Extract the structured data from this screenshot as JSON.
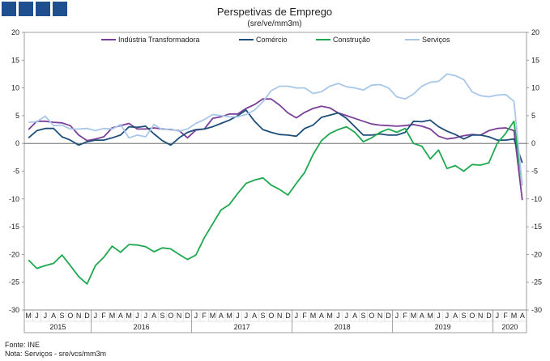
{
  "chart_data": {
    "type": "line",
    "title": "Perspetivas de Emprego",
    "subtitle": "(sre/ve/mm3m)",
    "ylim": [
      -30,
      20
    ],
    "yticks": [
      20,
      15,
      10,
      5,
      0,
      -5,
      -10,
      -15,
      -20,
      -25,
      -30
    ],
    "months": [
      "M",
      "J",
      "J",
      "A",
      "S",
      "O",
      "N",
      "D",
      "J",
      "F",
      "M",
      "A",
      "M",
      "J",
      "J",
      "A",
      "S",
      "O",
      "N",
      "D",
      "J",
      "F",
      "M",
      "A",
      "M",
      "J",
      "J",
      "A",
      "S",
      "O",
      "N",
      "D",
      "J",
      "F",
      "M",
      "A",
      "M",
      "J",
      "J",
      "A",
      "S",
      "O",
      "N",
      "D",
      "J",
      "F",
      "M",
      "A",
      "M",
      "J",
      "J",
      "A",
      "S",
      "O",
      "N",
      "D",
      "J",
      "F",
      "M",
      "A"
    ],
    "years": [
      {
        "label": "2015",
        "start": 0,
        "end": 7
      },
      {
        "label": "2016",
        "start": 8,
        "end": 19
      },
      {
        "label": "2017",
        "start": 20,
        "end": 31
      },
      {
        "label": "2018",
        "start": 32,
        "end": 43
      },
      {
        "label": "2019",
        "start": 44,
        "end": 55
      },
      {
        "label": "2020",
        "start": 56,
        "end": 59
      }
    ],
    "series": [
      {
        "name": "Indústria Transformadora",
        "color": "#7b3f98",
        "values": [
          2.5,
          4.0,
          4.0,
          3.8,
          3.7,
          3.2,
          1.5,
          0.5,
          0.8,
          1.2,
          2.8,
          3.2,
          3.6,
          2.6,
          2.6,
          2.8,
          2.6,
          2.5,
          2.3,
          1.0,
          2.4,
          2.6,
          4.5,
          4.8,
          5.3,
          5.3,
          6.3,
          7.0,
          8.0,
          8.0,
          6.9,
          5.5,
          4.6,
          5.6,
          6.3,
          6.7,
          6.4,
          5.5,
          5.0,
          4.5,
          4.0,
          3.5,
          3.3,
          3.2,
          3.1,
          3.2,
          3.4,
          3.1,
          2.6,
          1.3,
          0.8,
          1.0,
          1.4,
          1.6,
          1.5,
          2.3,
          2.7,
          2.8,
          2.3,
          -10.2
        ]
      },
      {
        "name": "Comércio",
        "color": "#1f4e79",
        "values": [
          1.0,
          2.3,
          2.7,
          2.7,
          1.2,
          0.6,
          -0.3,
          0.3,
          0.6,
          0.6,
          1.0,
          1.5,
          3.0,
          2.9,
          3.1,
          1.7,
          0.5,
          -0.3,
          1.0,
          2.0,
          2.5,
          2.6,
          3.0,
          3.6,
          4.2,
          5.0,
          6.0,
          4.0,
          2.5,
          2.0,
          1.6,
          1.5,
          1.3,
          2.7,
          3.3,
          4.7,
          5.1,
          5.5,
          4.5,
          3.0,
          1.5,
          1.5,
          1.7,
          1.5,
          1.5,
          2.0,
          4.0,
          3.9,
          4.2,
          3.0,
          2.2,
          1.6,
          0.8,
          1.5,
          1.5,
          1.2,
          0.6,
          0.6,
          0.8,
          -3.5
        ]
      },
      {
        "name": "Construção",
        "color": "#1fa84f",
        "values": [
          -21.0,
          -22.5,
          -22.0,
          -21.6,
          -20.1,
          -22.0,
          -24.0,
          -25.3,
          -22.0,
          -20.5,
          -18.5,
          -19.6,
          -18.2,
          -18.3,
          -18.6,
          -19.5,
          -18.8,
          -19.0,
          -20.0,
          -20.9,
          -20.1,
          -17.0,
          -14.5,
          -12.0,
          -11.0,
          -9.0,
          -7.2,
          -6.6,
          -6.2,
          -7.5,
          -8.3,
          -9.3,
          -7.2,
          -5.2,
          -2.0,
          0.5,
          1.8,
          2.5,
          3.0,
          2.0,
          0.3,
          1.0,
          2.0,
          2.6,
          2.0,
          2.7,
          0.0,
          -0.5,
          -2.8,
          -1.2,
          -4.5,
          -4.0,
          -5.0,
          -3.8,
          -3.9,
          -3.5,
          0.0,
          1.8,
          4.0,
          -7.5
        ]
      },
      {
        "name": "Serviços",
        "color": "#a9c7e8",
        "values": [
          3.8,
          3.9,
          4.9,
          3.2,
          3.3,
          2.6,
          2.6,
          2.7,
          2.3,
          2.7,
          2.6,
          3.4,
          1.0,
          1.5,
          1.2,
          3.4,
          2.5,
          2.6,
          2.2,
          2.6,
          3.6,
          4.3,
          5.2,
          5.0,
          4.8,
          4.8,
          5.2,
          6.0,
          7.5,
          9.5,
          10.3,
          10.3,
          10.0,
          10.0,
          9.0,
          9.3,
          10.3,
          10.8,
          10.2,
          10.0,
          9.6,
          10.5,
          10.6,
          10.0,
          8.4,
          8.0,
          8.9,
          10.3,
          11.0,
          11.2,
          12.5,
          12.2,
          11.5,
          9.3,
          8.6,
          8.4,
          8.7,
          8.8,
          7.6,
          -7.6
        ]
      }
    ]
  },
  "footer": {
    "source": "Fonte: INE",
    "note": "Nota: Serviços - sre/vcs/mm3m"
  }
}
